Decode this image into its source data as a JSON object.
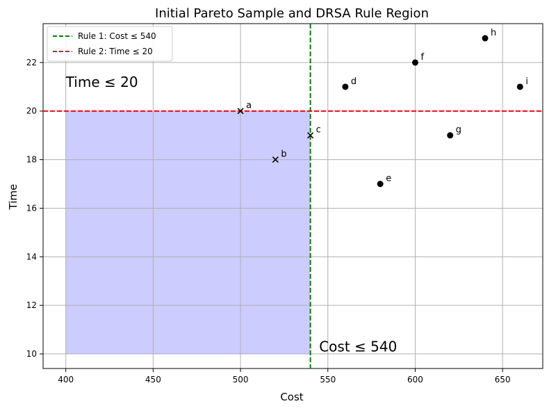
{
  "chart_data": {
    "type": "scatter",
    "title": "Initial Pareto Sample and DRSA Rule Region",
    "xlabel": "Cost",
    "ylabel": "Time",
    "xlim": [
      387,
      673
    ],
    "ylim": [
      9.4,
      23.6
    ],
    "xticks": [
      400,
      450,
      500,
      550,
      600,
      650
    ],
    "yticks": [
      10,
      12,
      14,
      16,
      18,
      20,
      22
    ],
    "grid": true,
    "legend_position": "top-left",
    "legend": [
      {
        "label": "Rule 1: Cost ≤ 540",
        "color": "#008000",
        "style": "dashed"
      },
      {
        "label": "Rule 2: Time ≤ 20",
        "color": "#ff0000",
        "style": "dashed"
      }
    ],
    "rule_lines": {
      "vertical": {
        "x": 540,
        "color": "#008000"
      },
      "horizontal": {
        "y": 20,
        "color": "#ff0000"
      }
    },
    "region": {
      "x": [
        400,
        540
      ],
      "y": [
        10,
        20
      ],
      "color": "#ccccff"
    },
    "annotations": [
      {
        "text": "Time ≤ 20",
        "x": 400,
        "y": 21
      },
      {
        "text": "Cost ≤ 540",
        "x": 545,
        "y": 10.1
      }
    ],
    "points": [
      {
        "label": "a",
        "x": 500,
        "y": 20,
        "marker": "x"
      },
      {
        "label": "b",
        "x": 520,
        "y": 18,
        "marker": "x"
      },
      {
        "label": "c",
        "x": 540,
        "y": 19,
        "marker": "x"
      },
      {
        "label": "d",
        "x": 560,
        "y": 21,
        "marker": "o"
      },
      {
        "label": "e",
        "x": 580,
        "y": 17,
        "marker": "o"
      },
      {
        "label": "f",
        "x": 600,
        "y": 22,
        "marker": "o"
      },
      {
        "label": "g",
        "x": 620,
        "y": 19,
        "marker": "o"
      },
      {
        "label": "h",
        "x": 640,
        "y": 23,
        "marker": "o"
      },
      {
        "label": "i",
        "x": 660,
        "y": 21,
        "marker": "o"
      }
    ]
  }
}
